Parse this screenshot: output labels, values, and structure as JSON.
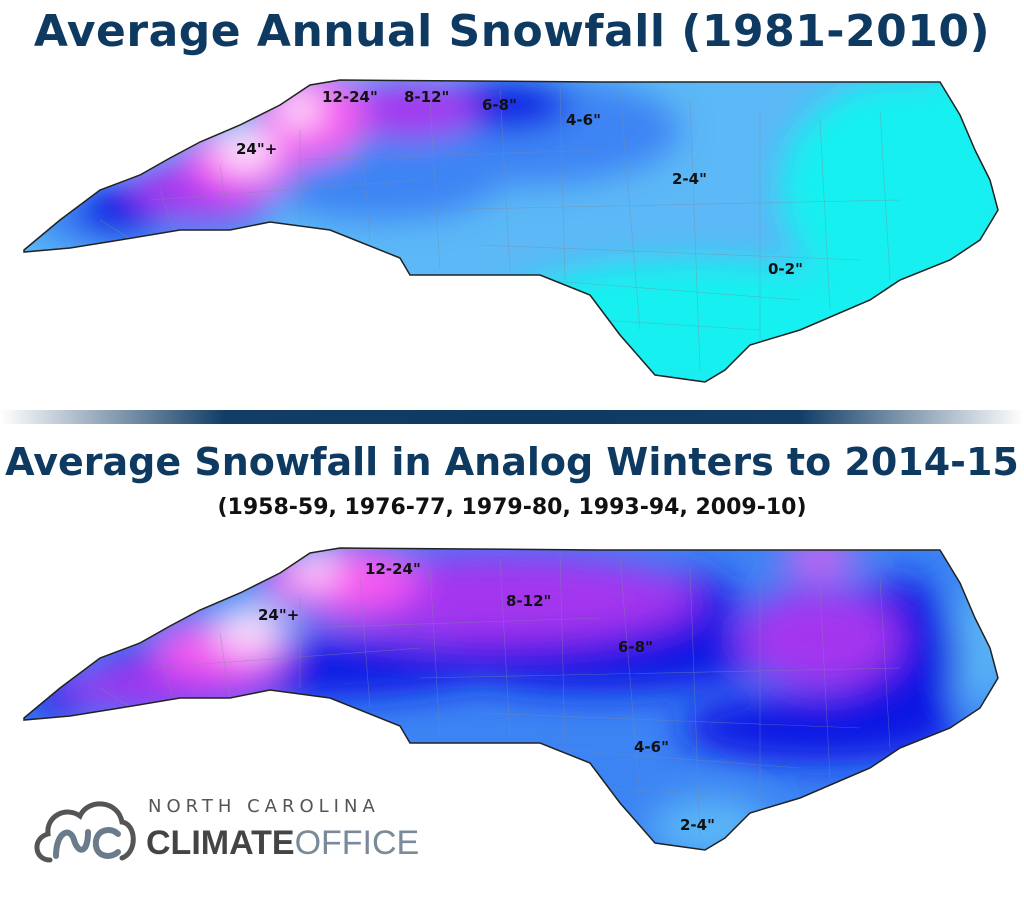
{
  "top_map": {
    "title": "Average Annual Snowfall (1981-2010)",
    "labels": [
      "12-24\"",
      "8-12\"",
      "6-8\"",
      "4-6\"",
      "24\"+",
      "2-4\"",
      "0-2\""
    ]
  },
  "bottom_map": {
    "title": "Average Snowfall in Analog Winters to 2014-15",
    "subtitle": "(1958-59, 1976-77, 1979-80, 1993-94, 2009-10)",
    "labels": [
      "12-24\"",
      "24\"+",
      "8-12\"",
      "6-8\"",
      "4-6\"",
      "2-4\""
    ]
  },
  "colors": {
    "title": "#0e3a62",
    "range_24_plus": "#fbe4fb",
    "range_12_24": "#f75af0",
    "range_8_12": "#a435ef",
    "range_6_8": "#0f16e3",
    "range_4_6": "#3c84f4",
    "range_2_4": "#5cb8f6",
    "range_0_2": "#12f0f0"
  },
  "logo": {
    "line1": "NORTH CAROLINA",
    "line2_bold": "CLIMATE",
    "line2_light": "OFFICE"
  }
}
